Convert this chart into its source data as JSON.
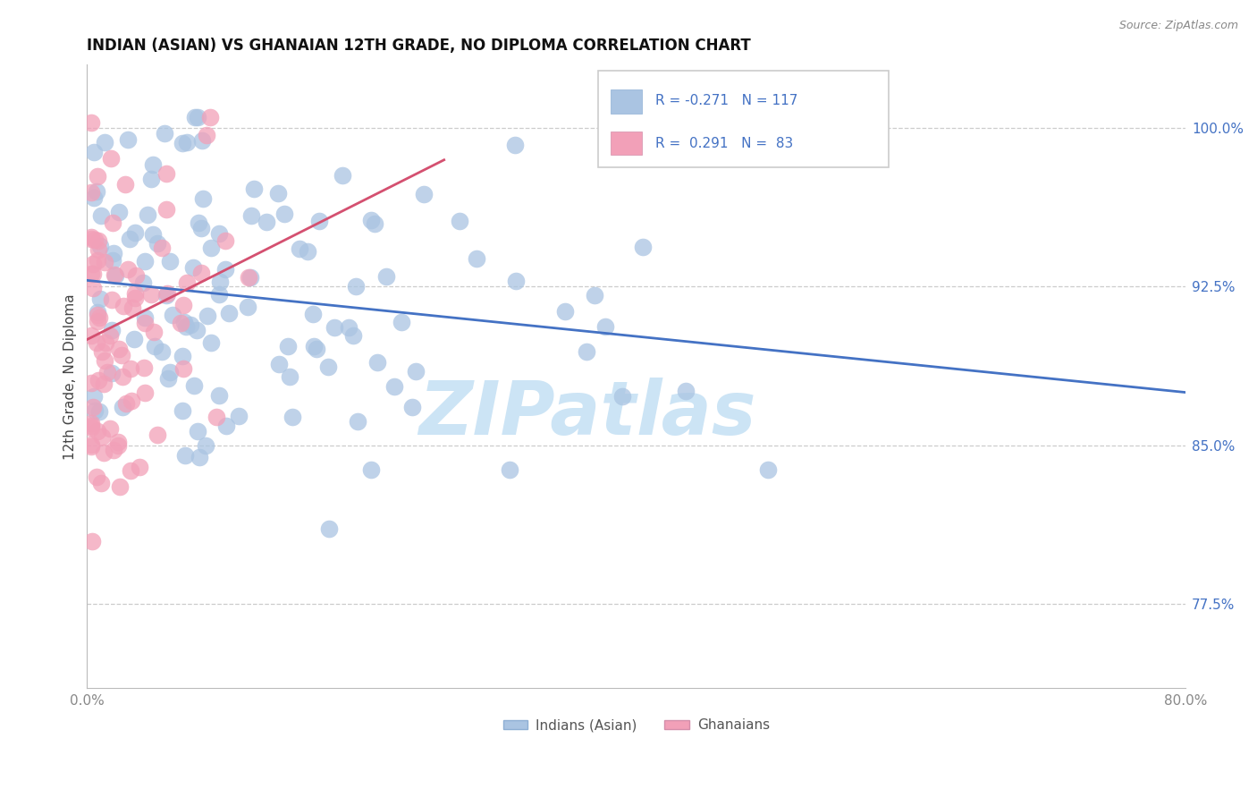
{
  "title": "INDIAN (ASIAN) VS GHANAIAN 12TH GRADE, NO DIPLOMA CORRELATION CHART",
  "ylabel": "12th Grade, No Diploma",
  "source": "Source: ZipAtlas.com",
  "xlim": [
    0.0,
    0.8
  ],
  "ylim": [
    0.735,
    1.03
  ],
  "xticks": [
    0.0,
    0.1,
    0.2,
    0.3,
    0.4,
    0.5,
    0.6,
    0.7,
    0.8
  ],
  "xticklabels": [
    "0.0%",
    "",
    "",
    "",
    "",
    "",
    "",
    "",
    "80.0%"
  ],
  "ytick_positions": [
    0.775,
    0.85,
    0.925,
    1.0
  ],
  "ytick_labels": [
    "77.5%",
    "85.0%",
    "92.5%",
    "100.0%"
  ],
  "r_indian": -0.271,
  "n_indian": 117,
  "r_ghanaian": 0.291,
  "n_ghanaian": 83,
  "blue_color": "#aac4e2",
  "pink_color": "#f2a0b8",
  "blue_line_color": "#4472c4",
  "pink_line_color": "#d45070",
  "watermark_color": "#cce4f5",
  "legend_label_indian": "Indians (Asian)",
  "legend_label_ghanaian": "Ghanaians",
  "blue_trend": [
    0.0,
    0.8,
    0.928,
    0.875
  ],
  "pink_trend": [
    0.0,
    0.26,
    0.9,
    0.985
  ]
}
